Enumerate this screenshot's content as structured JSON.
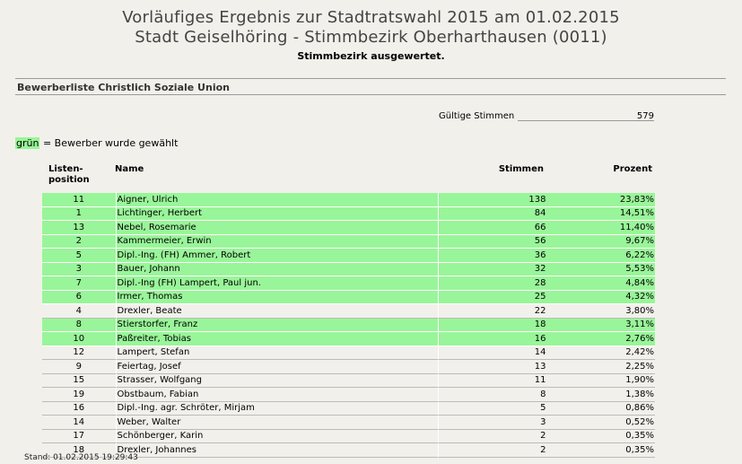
{
  "header": {
    "title_line1": "Vorläufiges Ergebnis zur Stadtratswahl 2015 am 01.02.2015",
    "title_line2": "Stadt Geiselhöring - Stimmbezirk Oberharthausen (0011)",
    "status": "Stimmbezirk ausgewertet."
  },
  "section_title": "Bewerberliste Christlich Soziale Union",
  "valid_votes": {
    "label": "Gültige Stimmen",
    "value": "579"
  },
  "legend": {
    "marker": "grün",
    "text": " = Bewerber wurde gewählt",
    "color": "#99f599"
  },
  "table": {
    "headers": {
      "position_line1": "Listen-",
      "position_line2": "position",
      "name": "Name",
      "votes": "Stimmen",
      "percent": "Prozent"
    },
    "rows": [
      {
        "pos": "11",
        "name": "Aigner, Ulrich",
        "votes": "138",
        "pct": "23,83%",
        "elected": true
      },
      {
        "pos": "1",
        "name": "Lichtinger, Herbert",
        "votes": "84",
        "pct": "14,51%",
        "elected": true
      },
      {
        "pos": "13",
        "name": "Nebel, Rosemarie",
        "votes": "66",
        "pct": "11,40%",
        "elected": true
      },
      {
        "pos": "2",
        "name": "Kammermeier, Erwin",
        "votes": "56",
        "pct": "9,67%",
        "elected": true
      },
      {
        "pos": "5",
        "name": "Dipl.-Ing. (FH) Ammer, Robert",
        "votes": "36",
        "pct": "6,22%",
        "elected": true
      },
      {
        "pos": "3",
        "name": "Bauer, Johann",
        "votes": "32",
        "pct": "5,53%",
        "elected": true
      },
      {
        "pos": "7",
        "name": "Dipl.-Ing (FH) Lampert, Paul jun.",
        "votes": "28",
        "pct": "4,84%",
        "elected": true
      },
      {
        "pos": "6",
        "name": "Irmer, Thomas",
        "votes": "25",
        "pct": "4,32%",
        "elected": true
      },
      {
        "pos": "4",
        "name": "Drexler, Beate",
        "votes": "22",
        "pct": "3,80%",
        "elected": false
      },
      {
        "pos": "8",
        "name": "Stierstorfer, Franz",
        "votes": "18",
        "pct": "3,11%",
        "elected": true
      },
      {
        "pos": "10",
        "name": "Paßreiter, Tobias",
        "votes": "16",
        "pct": "2,76%",
        "elected": true
      },
      {
        "pos": "12",
        "name": "Lampert, Stefan",
        "votes": "14",
        "pct": "2,42%",
        "elected": false
      },
      {
        "pos": "9",
        "name": "Feiertag, Josef",
        "votes": "13",
        "pct": "2,25%",
        "elected": false
      },
      {
        "pos": "15",
        "name": "Strasser, Wolfgang",
        "votes": "11",
        "pct": "1,90%",
        "elected": false
      },
      {
        "pos": "19",
        "name": "Obstbaum, Fabian",
        "votes": "8",
        "pct": "1,38%",
        "elected": false
      },
      {
        "pos": "16",
        "name": "Dipl.-Ing. agr. Schröter, Mirjam",
        "votes": "5",
        "pct": "0,86%",
        "elected": false
      },
      {
        "pos": "14",
        "name": "Weber, Walter",
        "votes": "3",
        "pct": "0,52%",
        "elected": false
      },
      {
        "pos": "17",
        "name": "Schönberger, Karin",
        "votes": "2",
        "pct": "0,35%",
        "elected": false
      },
      {
        "pos": "18",
        "name": "Drexler, Johannes",
        "votes": "2",
        "pct": "0,35%",
        "elected": false
      }
    ]
  },
  "footer": "Stand: 01.02.2015 19:29:43"
}
